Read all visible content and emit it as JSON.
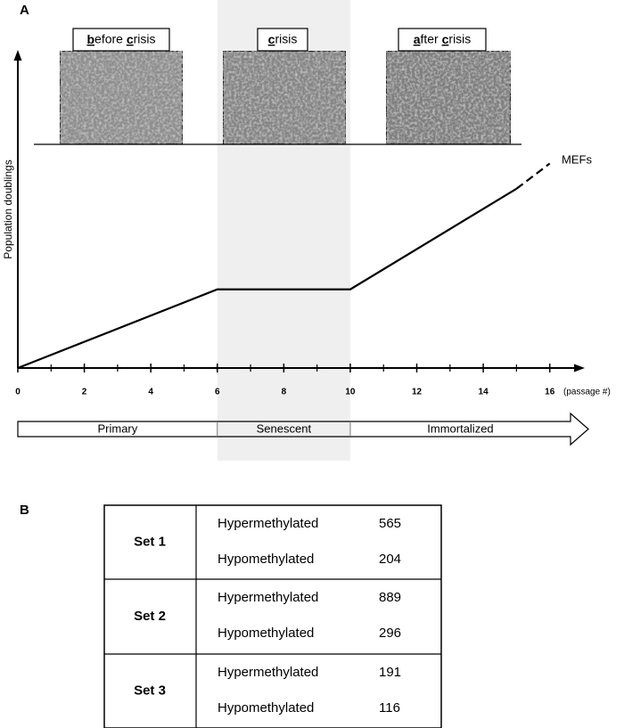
{
  "panel_a": {
    "label": "A",
    "images": [
      {
        "caption": "before crisis"
      },
      {
        "caption": "crisis"
      },
      {
        "caption": "after crisis"
      }
    ],
    "chart_data": {
      "type": "line",
      "y_label": "Population doublings",
      "x_label": "(passage #)",
      "annotation": "MEFs",
      "x": [
        0,
        6,
        10,
        15,
        16
      ],
      "series": [
        {
          "color": "#000000",
          "values": [
            0,
            25,
            25,
            57,
            null
          ]
        },
        {
          "color": "#000000",
          "dashed": true,
          "values": [
            null,
            null,
            null,
            57,
            65
          ]
        }
      ],
      "xlim": [
        0,
        17
      ],
      "ylim": [
        0,
        100
      ],
      "xticks": [
        0,
        2,
        4,
        6,
        8,
        10,
        12,
        14,
        16
      ],
      "xminorticks": [
        1,
        3,
        5,
        7,
        9,
        11,
        13,
        15
      ],
      "shade": [
        6,
        10
      ]
    },
    "phases": [
      "Primary",
      "Senescent",
      "Immortalized"
    ]
  },
  "panel_b": {
    "label": "B",
    "table": {
      "rows": [
        {
          "set": "Set 1",
          "entries": [
            [
              "Hypermethylated",
              "565"
            ],
            [
              "Hypomethylated",
              "204"
            ]
          ]
        },
        {
          "set": "Set 2",
          "entries": [
            [
              "Hypermethylated",
              "889"
            ],
            [
              "Hypomethylated",
              "296"
            ]
          ]
        },
        {
          "set": "Set 3",
          "entries": [
            [
              "Hypermethylated",
              "191"
            ],
            [
              "Hypomethylated",
              "116"
            ]
          ]
        }
      ]
    }
  }
}
